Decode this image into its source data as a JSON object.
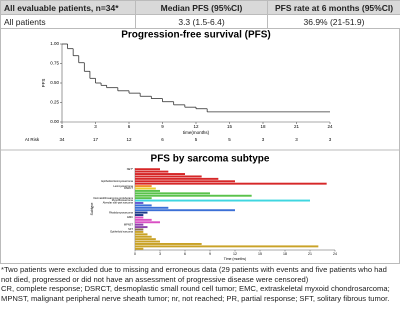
{
  "table": {
    "header": [
      "All evaluable patients, n=34*",
      "Median PFS (95%CI)",
      "PFS rate at 6 months (95%CI)"
    ],
    "rows": [
      [
        "All patients",
        "3.3 (1.5-6.4)",
        "36.9% (21-51.9)"
      ]
    ]
  },
  "chart_data": [
    {
      "type": "line",
      "title": "Progression-free survival (PFS)",
      "y_label": "PFS",
      "x_label": "time(months)",
      "x": [
        0,
        0.5,
        1,
        1.5,
        2,
        2.5,
        3,
        3.5,
        4,
        5,
        6,
        7,
        8,
        9,
        10,
        11,
        12,
        13,
        24
      ],
      "values": [
        1.0,
        0.94,
        0.85,
        0.76,
        0.65,
        0.56,
        0.5,
        0.47,
        0.44,
        0.4,
        0.37,
        0.33,
        0.3,
        0.26,
        0.22,
        0.19,
        0.17,
        0.13,
        0.13
      ],
      "color": "#333333",
      "xlim": [
        0,
        24
      ],
      "xticks": [
        0,
        3,
        6,
        9,
        12,
        15,
        18,
        21,
        24
      ],
      "ylim": [
        0,
        1
      ],
      "yticks": [
        {
          "value": 0,
          "label": "0.00"
        },
        {
          "value": 0.25,
          "label": "0.25"
        },
        {
          "value": 0.5,
          "label": "0.50"
        },
        {
          "value": 0.75,
          "label": "0.75"
        },
        {
          "value": 1,
          "label": "1.00"
        }
      ],
      "at_risk_label": "At Risk",
      "at_risk": [
        34,
        17,
        12,
        6,
        5,
        5,
        3,
        3,
        3
      ]
    },
    {
      "type": "bar",
      "title": "PFS by sarcoma subtype",
      "y_label": "Subtype",
      "x_label": "Time (months)",
      "categories": [
        "NET*",
        null,
        null,
        null,
        null,
        "Epithelioid leiomyosarcoma",
        null,
        "Leiomyosarcoma",
        "DSRCT",
        null,
        null,
        null,
        "Dermatofibrosarcoma protuberans",
        "Myxofibrosarcoma",
        "Alveolar soft-part sarcoma",
        null,
        null,
        null,
        "Rhabdomyosarcoma",
        null,
        "EMC",
        null,
        null,
        "MPNST",
        null,
        "SFT",
        "Epithelioid sarcoma",
        null,
        null,
        null,
        null,
        null,
        null,
        null
      ],
      "values": [
        3,
        4,
        6,
        8,
        10,
        12,
        23,
        2,
        2.5,
        3,
        9,
        14,
        2,
        21,
        1,
        2,
        4,
        12,
        1.5,
        1,
        1,
        2,
        3,
        1,
        1.5,
        1,
        1,
        1.5,
        2,
        2.5,
        3,
        8,
        22,
        1
      ],
      "colors": [
        "#d62728",
        "#d62728",
        "#d62728",
        "#d62728",
        "#d62728",
        "#d62728",
        "#d62728",
        "#f28e2b",
        "#e8d030",
        "#59c24a",
        "#59c24a",
        "#59c24a",
        "#59c24a",
        "#3fd6e0",
        "#6a5acd",
        "#3b6fd6",
        "#3b6fd6",
        "#3b6fd6",
        "#1f3b8a",
        "#1f3b8a",
        "#d94fc3",
        "#d94fc3",
        "#d94fc3",
        "#8e44ad",
        "#8e44ad",
        "#8c6d4f",
        "#c9a227",
        "#c9a227",
        "#c9a227",
        "#c9a227",
        "#c9a227",
        "#c9a227",
        "#c9a227",
        "#c9a227"
      ],
      "xlim": [
        0,
        24
      ],
      "xticks": [
        0,
        3,
        6,
        9,
        12,
        15,
        18,
        21,
        24
      ]
    }
  ],
  "footnote": [
    "*Two patients were excluded due to missing and erroneous data (29 patients with events and five patients who had not died, progressed or did not have an assessment of progressive disease were censored)",
    "CR, complete response; DSRCT, desmoplastic small round cell tumor; EMC, extraskeletal myxoid chondrosarcoma; MPNST, malignant peripheral nerve sheath tumor; nr, not reached; PR, partial response; SFT, solitary fibrous tumor."
  ]
}
